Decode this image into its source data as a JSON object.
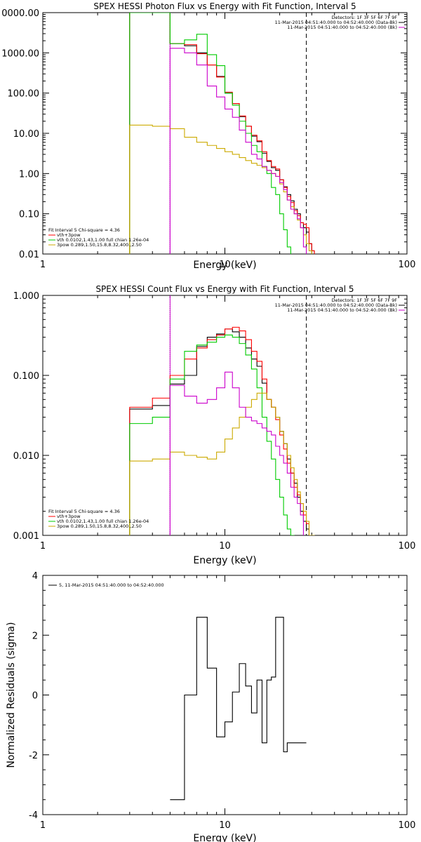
{
  "chart_data": [
    {
      "type": "line",
      "step": true,
      "title": "SPEX HESSI Photon Flux vs Energy with Fit Function, Interval 5",
      "xlabel": "Energy (keV)",
      "ylabel": "",
      "xscale": "log",
      "yscale": "log",
      "xlim": [
        1,
        100
      ],
      "ylim": [
        0.01,
        10000
      ],
      "xticks": [
        "1",
        "10",
        "100"
      ],
      "yticks": [
        "0000.00",
        "1000.00",
        "100.00",
        "10.00",
        "1.00",
        "0.10",
        "0.01"
      ],
      "x_edges": [
        3,
        4,
        5,
        6,
        7,
        8,
        9,
        10,
        11,
        12,
        13,
        14,
        15,
        16,
        17,
        18,
        19,
        20,
        21,
        22,
        23,
        24,
        25,
        26,
        27,
        28,
        29,
        30,
        31,
        32,
        33
      ],
      "vlines": [
        {
          "x": 5,
          "style": "dotted",
          "color": "#000000"
        },
        {
          "x": 5,
          "style": "solid",
          "color": "#cc00cc"
        },
        {
          "x": 28,
          "style": "dashed",
          "color": "#000000"
        }
      ],
      "series": [
        {
          "name": "",
          "color": "#000000",
          "values": [
            10000,
            10000,
            1700,
            1500,
            1000,
            500,
            260,
            100,
            55,
            26,
            15,
            8.5,
            6.2,
            3.2,
            2.0,
            1.4,
            1.2,
            0.7,
            0.47,
            0.3,
            0.21,
            0.13,
            0.1,
            0.06,
            0.045,
            0.035,
            0.018,
            0.012,
            0.009,
            0.009
          ]
        },
        {
          "name": "vth+3pow",
          "color": "#ff0000",
          "values": [
            10000,
            10000,
            1700,
            1600,
            950,
            500,
            250,
            105,
            55,
            27,
            15,
            9,
            6.5,
            3.5,
            2.1,
            1.5,
            1.3,
            0.7,
            0.45,
            0.27,
            0.19,
            0.12,
            0.09,
            0.06,
            0.055,
            0.045,
            0.018,
            0.012,
            0.009,
            0.009
          ]
        },
        {
          "name": "vth 0.0102,1.43,1.00  full chian 1.26e-04",
          "color": "#00cc00",
          "values": [
            10000,
            10000,
            1700,
            2100,
            2900,
            900,
            480,
            100,
            50,
            20,
            10,
            5,
            3.5,
            1.5,
            1,
            0.45,
            0.3,
            0.1,
            0.04,
            0.015,
            0.009,
            0.009,
            0.009,
            0.009,
            0.009,
            0.009,
            0.009,
            0.009,
            0.009,
            0.009
          ]
        },
        {
          "name": "3pow 0.289,1.50,15.8,8.32,400.,2.50",
          "color": "#ccaa00",
          "values": [
            16,
            15,
            13,
            8,
            6,
            5,
            4.2,
            3.5,
            3,
            2.5,
            2.1,
            1.8,
            1.6,
            1.4,
            1.2,
            1.0,
            0.85,
            0.55,
            0.35,
            0.22,
            0.15,
            0.1,
            0.07,
            0.045,
            0.03,
            0.018,
            0.012,
            0.009,
            0.009,
            0.009
          ]
        },
        {
          "name": "",
          "color": "#cc00cc",
          "values": [
            0.009,
            0.009,
            1300,
            1000,
            500,
            150,
            80,
            40,
            25,
            12,
            6,
            3,
            2.3,
            1.5,
            1.2,
            1.0,
            0.85,
            0.6,
            0.4,
            0.22,
            0.13,
            0.1,
            0.075,
            0.045,
            0.015,
            0.009,
            0.009,
            0.009,
            0.009,
            0.009
          ]
        }
      ],
      "legend_left": {
        "header": "Fit Interval  5    Chi-square = 4.36",
        "entries": [
          {
            "label": "vth+3pow",
            "color": "#ff0000"
          },
          {
            "label": "vth 0.0102,1.43,1.00  full chian 1.26e-04",
            "color": "#00cc00"
          },
          {
            "label": "3pow 0.289,1.50,15.8,8.32,400.,2.50",
            "color": "#ccaa00"
          }
        ]
      },
      "legend_right": {
        "header": "Detectors: 1F 3F 5F 6F 7F 9F",
        "entries": [
          {
            "label": "11-Mar-2015 04:51:40.000 to 04:52:40.000 (Data-Bk)",
            "color": "#000000"
          },
          {
            "label": "11-Mar-2015 04:51:40.000 to 04:52:40.000 (Bk)",
            "color": "#cc00cc"
          }
        ]
      }
    },
    {
      "type": "line",
      "step": true,
      "title": "SPEX HESSI Count Flux vs Energy with Fit Function, Interval 5",
      "xlabel": "Energy (keV)",
      "ylabel": "",
      "xscale": "log",
      "yscale": "log",
      "xlim": [
        1,
        100
      ],
      "ylim": [
        0.001,
        1
      ],
      "xticks": [
        "1",
        "10",
        "100"
      ],
      "yticks": [
        "1.000",
        "0.100",
        "0.010",
        "0.001"
      ],
      "x_edges": [
        3,
        4,
        5,
        6,
        7,
        8,
        9,
        10,
        11,
        12,
        13,
        14,
        15,
        16,
        17,
        18,
        19,
        20,
        21,
        22,
        23,
        24,
        25,
        26,
        27,
        28,
        29,
        30,
        31,
        32,
        33
      ],
      "vlines": [
        {
          "x": 5,
          "style": "dotted",
          "color": "#000000"
        },
        {
          "x": 5,
          "style": "solid",
          "color": "#cc00cc"
        },
        {
          "x": 28,
          "style": "dashed",
          "color": "#000000"
        }
      ],
      "series": [
        {
          "name": "",
          "color": "#000000",
          "values": [
            0.038,
            0.042,
            0.078,
            0.1,
            0.23,
            0.3,
            0.33,
            0.38,
            0.35,
            0.3,
            0.22,
            0.16,
            0.13,
            0.08,
            0.05,
            0.04,
            0.03,
            0.02,
            0.014,
            0.009,
            0.006,
            0.0045,
            0.003,
            0.002,
            0.0015,
            0.0012,
            0.0009,
            0.0009,
            0.0009,
            0.0009
          ]
        },
        {
          "name": "vth+3pow",
          "color": "#ff0000",
          "values": [
            0.04,
            0.052,
            0.1,
            0.16,
            0.22,
            0.28,
            0.32,
            0.38,
            0.4,
            0.36,
            0.28,
            0.2,
            0.15,
            0.09,
            0.05,
            0.04,
            0.028,
            0.018,
            0.012,
            0.008,
            0.006,
            0.004,
            0.0032,
            0.0025,
            0.0018,
            0.0014,
            0.001,
            0.001,
            0.0009,
            0.0009
          ]
        },
        {
          "name": "vth 0.0102,1.43,1.00  full chian 1.26e-04",
          "color": "#00cc00",
          "values": [
            0.025,
            0.03,
            0.09,
            0.2,
            0.24,
            0.26,
            0.3,
            0.32,
            0.3,
            0.25,
            0.18,
            0.12,
            0.07,
            0.03,
            0.015,
            0.009,
            0.005,
            0.003,
            0.0018,
            0.0012,
            0.001,
            0.0009,
            0.0009,
            0.0009,
            0.0009,
            0.0009,
            0.0009,
            0.0009,
            0.0009,
            0.0009
          ]
        },
        {
          "name": "3pow 0.289,1.50,15.8,8.32,400.,2.50",
          "color": "#ccaa00",
          "values": [
            0.0085,
            0.009,
            0.011,
            0.01,
            0.0095,
            0.009,
            0.011,
            0.016,
            0.022,
            0.03,
            0.04,
            0.05,
            0.06,
            0.06,
            0.05,
            0.04,
            0.03,
            0.02,
            0.014,
            0.01,
            0.007,
            0.005,
            0.0035,
            0.0025,
            0.002,
            0.0015,
            0.001,
            0.001,
            0.0009,
            0.0009
          ]
        },
        {
          "name": "",
          "color": "#cc00cc",
          "values": [
            0.0009,
            0.0009,
            0.075,
            0.055,
            0.045,
            0.05,
            0.07,
            0.11,
            0.07,
            0.04,
            0.03,
            0.027,
            0.025,
            0.022,
            0.02,
            0.018,
            0.013,
            0.01,
            0.008,
            0.006,
            0.004,
            0.003,
            0.0025,
            0.0018,
            0.0009,
            0.0009,
            0.0009,
            0.0009,
            0.0009,
            0.0009
          ]
        }
      ],
      "legend_left": {
        "header": "Fit Interval  5    Chi-square = 4.36",
        "entries": [
          {
            "label": "vth+3pow",
            "color": "#ff0000"
          },
          {
            "label": "vth 0.0102,1.43,1.00  full chian 1.26e-04",
            "color": "#00cc00"
          },
          {
            "label": "3pow 0.289,1.50,15.8,8.32,400.,2.50",
            "color": "#ccaa00"
          }
        ]
      },
      "legend_right": {
        "header": "Detectors: 1F 3F 5F 6F 7F 9F",
        "entries": [
          {
            "label": "11-Mar-2015 04:51:40.000 to 04:52:40.000 (Data-Bk)",
            "color": "#000000"
          },
          {
            "label": "11-Mar-2015 04:51:40.000 to 04:52:40.000 (Bk)",
            "color": "#cc00cc"
          }
        ]
      }
    },
    {
      "type": "line",
      "step": true,
      "title": "",
      "xlabel": "Energy (keV)",
      "ylabel": "Normalized Residuals (sigma)",
      "xscale": "log",
      "yscale": "linear",
      "xlim": [
        1,
        100
      ],
      "ylim": [
        -4,
        4
      ],
      "xticks": [
        "1",
        "10",
        "100"
      ],
      "yticks": [
        "4",
        "2",
        "0",
        "-2",
        "-4"
      ],
      "x_edges": [
        5,
        6,
        7,
        8,
        9,
        10,
        11,
        12,
        13,
        14,
        15,
        16,
        17,
        18,
        19,
        20,
        21,
        22,
        23,
        24,
        25,
        26,
        27,
        28
      ],
      "series": [
        {
          "name": "5, 11-Mar-2015 04:51:40.000 to 04:52:40.000",
          "color": "#000000",
          "values": [
            -3.5,
            0,
            2.6,
            0.9,
            -1.4,
            -0.9,
            0.1,
            1.05,
            0.3,
            -0.6,
            0.5,
            -1.6,
            0.5,
            0.6,
            2.6,
            2.6,
            -1.9,
            -1.6,
            -1.6,
            -1.6,
            -1.6,
            -1.6,
            -1.6
          ]
        }
      ],
      "legend": {
        "entries": [
          {
            "label": "5, 11-Mar-2015 04:51:40.000 to 04:52:40.000",
            "color": "#000000"
          }
        ]
      }
    }
  ]
}
